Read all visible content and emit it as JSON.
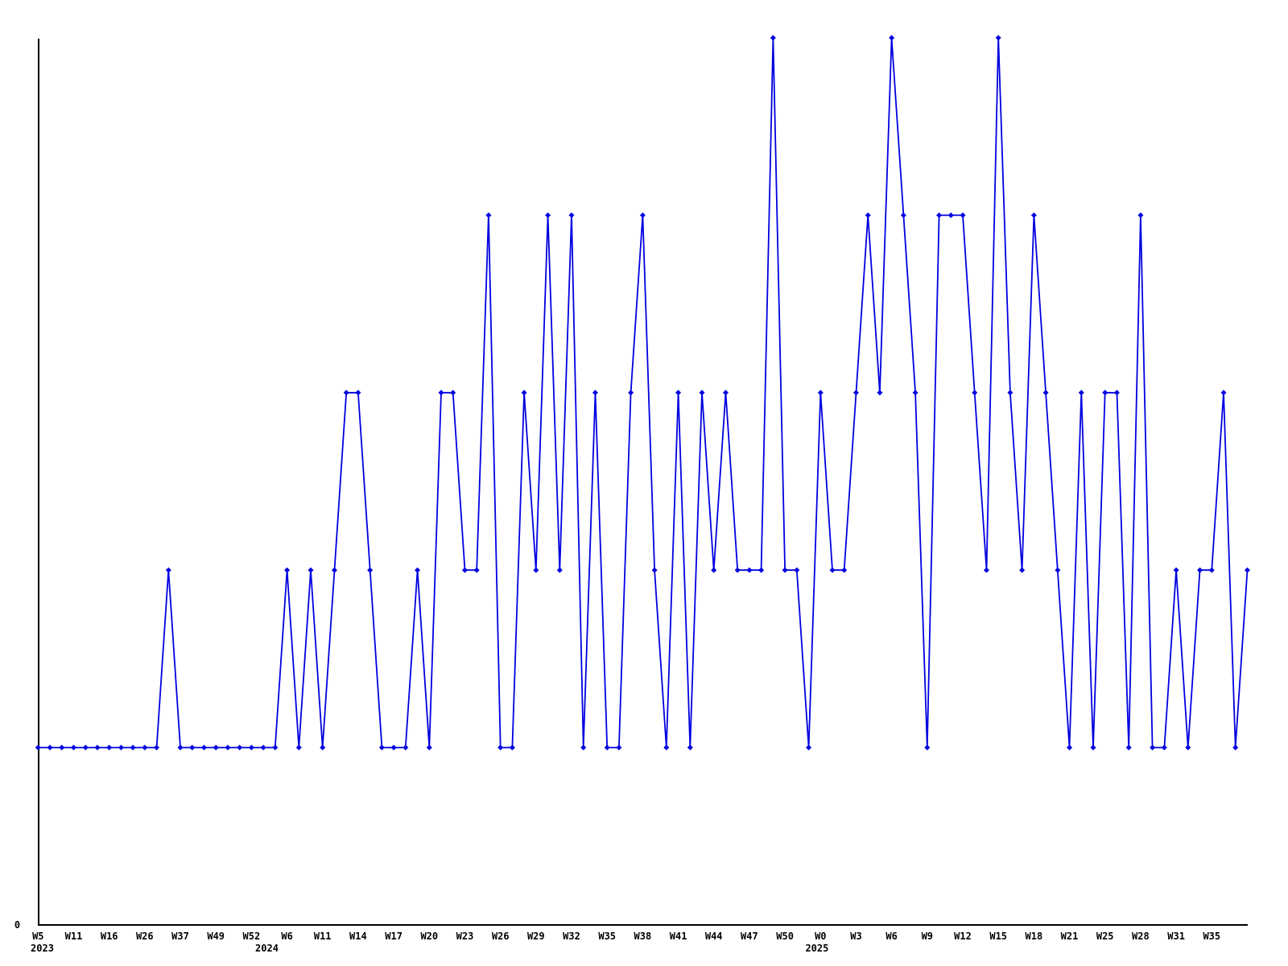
{
  "page": {
    "background_color": "#ffffff"
  },
  "chart_data": {
    "type": "line",
    "title": "",
    "legend": null,
    "grid": false,
    "line_color": "#0000e0",
    "axis_color": "#000000",
    "marker": "diamond",
    "y_axis": {
      "tick_labels": [
        "0"
      ],
      "ylim": [
        0,
        5
      ]
    },
    "x_axis": {
      "tick_labels": [
        "W5",
        "W11",
        "W16",
        "W26",
        "W37",
        "W49",
        "W52",
        "W6",
        "W11",
        "W14",
        "W17",
        "W20",
        "W23",
        "W26",
        "W29",
        "W32",
        "W35",
        "W38",
        "W41",
        "W44",
        "W47",
        "W50",
        "W0",
        "W3",
        "W6",
        "W9",
        "W12",
        "W15",
        "W18",
        "W21",
        "W25",
        "W28",
        "W31",
        "W35"
      ],
      "tick_point_indices": [
        0,
        3,
        6,
        9,
        12,
        15,
        18,
        21,
        24,
        27,
        30,
        33,
        36,
        39,
        42,
        45,
        48,
        51,
        54,
        57,
        60,
        63,
        66,
        69,
        72,
        75,
        78,
        81,
        84,
        87,
        90,
        93,
        96,
        99
      ],
      "year_labels": [
        {
          "label": "2023",
          "point_index": 0.35
        },
        {
          "label": "2024",
          "point_index": 19.3
        },
        {
          "label": "2025",
          "point_index": 65.7
        }
      ]
    },
    "num_points": 103,
    "values": [
      1,
      1,
      1,
      1,
      1,
      1,
      1,
      1,
      1,
      1,
      1,
      2,
      1,
      1,
      1,
      1,
      1,
      1,
      1,
      1,
      1,
      2,
      1,
      2,
      1,
      2,
      3,
      3,
      2,
      1,
      1,
      1,
      2,
      1,
      3,
      3,
      2,
      2,
      4,
      1,
      1,
      3,
      2,
      4,
      2,
      4,
      1,
      3,
      1,
      1,
      3,
      4,
      2,
      1,
      3,
      1,
      3,
      2,
      3,
      2,
      2,
      2,
      5,
      2,
      2,
      1,
      3,
      2,
      2,
      3,
      4,
      3,
      5,
      4,
      3,
      1,
      4,
      4,
      4,
      3,
      2,
      5,
      3,
      2,
      4,
      3,
      2,
      1,
      3,
      1,
      3,
      3,
      1,
      4,
      1,
      1,
      2,
      1,
      2,
      2,
      3,
      1,
      2
    ]
  }
}
